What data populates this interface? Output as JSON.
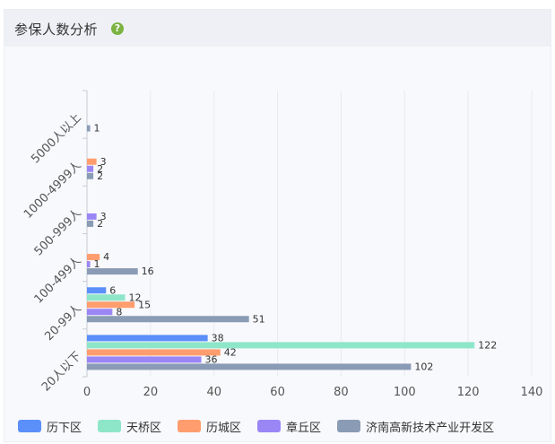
{
  "panel": {
    "title": "参保人数分析",
    "help_icon": "question-circle-icon"
  },
  "chart_data": {
    "type": "bar",
    "orientation": "horizontal",
    "categories": [
      "20人以下",
      "20-99人",
      "100-499人",
      "500-999人",
      "1000-4999人",
      "5000人以上"
    ],
    "series": [
      {
        "name": "历下区",
        "color": "#5b8ff9",
        "values": [
          38,
          6,
          null,
          null,
          null,
          null
        ]
      },
      {
        "name": "天桥区",
        "color": "#8ee6c8",
        "values": [
          122,
          12,
          null,
          null,
          null,
          null
        ]
      },
      {
        "name": "历城区",
        "color": "#ff9d6e",
        "values": [
          42,
          15,
          4,
          null,
          3,
          null
        ]
      },
      {
        "name": "章丘区",
        "color": "#9b86f5",
        "values": [
          36,
          8,
          1,
          3,
          2,
          null
        ]
      },
      {
        "name": "济南高新技术产业开发区",
        "color": "#8a9bb5",
        "values": [
          102,
          51,
          16,
          2,
          2,
          1
        ]
      }
    ],
    "xlim": [
      0,
      140
    ],
    "xticks": [
      0,
      20,
      40,
      60,
      80,
      100,
      120,
      140
    ],
    "grid": true,
    "legend_position": "bottom"
  }
}
